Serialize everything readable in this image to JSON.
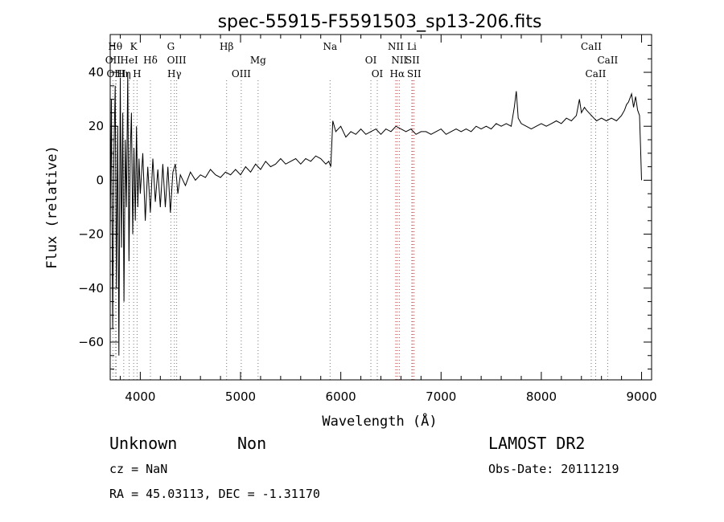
{
  "chart_data": {
    "type": "line",
    "title": "spec-55915-F5591503_sp13-206.fits",
    "xlabel": "Wavelength (Å)",
    "ylabel": "Flux (relative)",
    "xlim": [
      3700,
      9100
    ],
    "ylim": [
      -74,
      54
    ],
    "x_ticks": [
      4000,
      5000,
      6000,
      7000,
      8000,
      9000
    ],
    "y_ticks": [
      -60,
      -40,
      -20,
      0,
      20,
      40
    ],
    "grid": false,
    "series": [
      {
        "x": [
          3700,
          3712,
          3725,
          3737,
          3750,
          3762,
          3775,
          3787,
          3800,
          3812,
          3825,
          3837,
          3850,
          3862,
          3875,
          3887,
          3900,
          3912,
          3925,
          3937,
          3950,
          3962,
          3975,
          3987,
          4000,
          4025,
          4050,
          4075,
          4100,
          4125,
          4150,
          4175,
          4200,
          4225,
          4250,
          4275,
          4300,
          4325,
          4350,
          4375,
          4400,
          4450,
          4500,
          4550,
          4600,
          4650,
          4700,
          4750,
          4800,
          4850,
          4900,
          4950,
          5000,
          5050,
          5100,
          5150,
          5200,
          5250,
          5300,
          5350,
          5400,
          5450,
          5500,
          5550,
          5600,
          5650,
          5700,
          5750,
          5800,
          5850,
          5880,
          5900,
          5920,
          5950,
          6000,
          6050,
          6100,
          6150,
          6200,
          6250,
          6300,
          6350,
          6400,
          6450,
          6500,
          6550,
          6600,
          6650,
          6700,
          6750,
          6800,
          6850,
          6900,
          6950,
          7000,
          7050,
          7100,
          7150,
          7200,
          7250,
          7300,
          7350,
          7400,
          7450,
          7500,
          7550,
          7600,
          7650,
          7700,
          7730,
          7750,
          7770,
          7800,
          7850,
          7900,
          7950,
          8000,
          8050,
          8100,
          8150,
          8200,
          8250,
          8300,
          8350,
          8380,
          8400,
          8430,
          8450,
          8500,
          8550,
          8600,
          8650,
          8700,
          8750,
          8800,
          8830,
          8850,
          8870,
          8900,
          8920,
          8940,
          8960,
          8980,
          8990,
          9000
        ],
        "y": [
          -20,
          30,
          -55,
          10,
          35,
          -40,
          20,
          -65,
          38,
          -25,
          25,
          -45,
          15,
          -10,
          40,
          -30,
          10,
          25,
          -20,
          12,
          -15,
          20,
          -10,
          8,
          -5,
          10,
          -15,
          5,
          -12,
          8,
          -8,
          4,
          -10,
          6,
          -10,
          5,
          -12,
          3,
          6,
          -5,
          2,
          -2,
          3,
          0,
          2,
          1,
          4,
          2,
          1,
          3,
          2,
          4,
          2,
          5,
          3,
          6,
          4,
          7,
          5,
          6,
          8,
          6,
          7,
          8,
          6,
          8,
          7,
          9,
          8,
          6,
          7,
          5,
          22,
          18,
          20,
          16,
          18,
          17,
          19,
          17,
          18,
          19,
          17,
          19,
          18,
          20,
          19,
          18,
          19,
          17,
          18,
          18,
          17,
          18,
          19,
          17,
          18,
          19,
          18,
          19,
          18,
          20,
          19,
          20,
          19,
          21,
          20,
          21,
          20,
          27,
          33,
          23,
          21,
          20,
          19,
          20,
          21,
          20,
          21,
          22,
          21,
          23,
          22,
          24,
          30,
          25,
          27,
          26,
          24,
          22,
          23,
          22,
          23,
          22,
          24,
          26,
          28,
          29,
          32,
          27,
          31,
          26,
          24,
          12,
          0
        ]
      }
    ],
    "line_markers": [
      {
        "label": "Hθ",
        "x": 3750,
        "row": 0
      },
      {
        "label": "K",
        "x": 3934,
        "row": 0
      },
      {
        "label": "G",
        "x": 4305,
        "row": 0
      },
      {
        "label": "Hβ",
        "x": 4861,
        "row": 0
      },
      {
        "label": "Na",
        "x": 5893,
        "row": 0
      },
      {
        "label": "NII",
        "x": 6548,
        "row": 0
      },
      {
        "label": "Li",
        "x": 6708,
        "row": 0
      },
      {
        "label": "CaII",
        "x": 8498,
        "row": 0
      },
      {
        "label": "OII",
        "x": 3727,
        "row": 1
      },
      {
        "label": "HeI",
        "x": 3889,
        "row": 1
      },
      {
        "label": "OIII",
        "x": 4363,
        "row": 1
      },
      {
        "label": "Mg",
        "x": 5175,
        "row": 1
      },
      {
        "label": "OI",
        "x": 6300,
        "row": 1
      },
      {
        "label": "NII",
        "x": 6583,
        "row": 1
      },
      {
        "label": "SII",
        "x": 6716,
        "row": 1
      },
      {
        "label": "CaII",
        "x": 8662,
        "row": 1
      },
      {
        "label": "OIII",
        "x": 3760,
        "row": 2
      },
      {
        "label": "Hη",
        "x": 3835,
        "row": 2
      },
      {
        "label": "Hδ",
        "x": 4101,
        "row": 1
      },
      {
        "label": "H",
        "x": 3968,
        "row": 2
      },
      {
        "label": "Hγ",
        "x": 4340,
        "row": 2
      },
      {
        "label": "OIII",
        "x": 5007,
        "row": 2
      },
      {
        "label": "OI",
        "x": 6364,
        "row": 2
      },
      {
        "label": "Hα",
        "x": 6563,
        "row": 2
      },
      {
        "label": "SII",
        "x": 6731,
        "row": 2
      },
      {
        "label": "CaII",
        "x": 8542,
        "row": 2
      }
    ],
    "red_line_x": [
      6548,
      6563,
      6583,
      6716,
      6731
    ]
  },
  "info": {
    "class_label": "Unknown",
    "subclass_label": "Non",
    "survey": "LAMOST DR2",
    "cz": "cz = NaN",
    "obs_date": "Obs-Date: 20111219",
    "radec": "RA =  45.03113, DEC =  -1.31170"
  }
}
